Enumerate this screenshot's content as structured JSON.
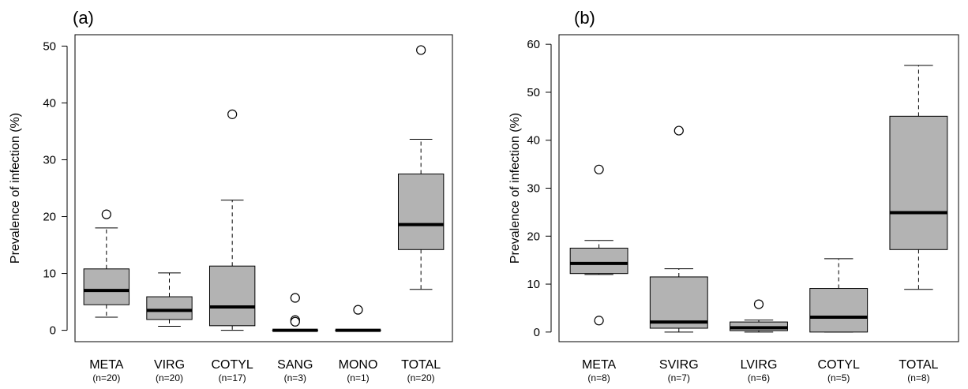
{
  "chart_data": [
    {
      "type": "box",
      "panel_label": "(a)",
      "ylabel": "Prevalence of infection (%)",
      "ylim": [
        -2,
        52
      ],
      "yticks": [
        0,
        10,
        20,
        30,
        40,
        50
      ],
      "categories": [
        "META",
        "VIRG",
        "COTYL",
        "SANG",
        "MONO",
        "TOTAL"
      ],
      "n_labels": [
        "(n=20)",
        "(n=20)",
        "(n=17)",
        "(n=3)",
        "(n=1)",
        "(n=20)"
      ],
      "boxes": [
        {
          "whislo": 2.3,
          "q1": 4.5,
          "med": 7.0,
          "q3": 10.8,
          "whishi": 18.0,
          "fliers": [
            20.4
          ]
        },
        {
          "whislo": 0.7,
          "q1": 1.9,
          "med": 3.5,
          "q3": 5.9,
          "whishi": 10.1,
          "fliers": []
        },
        {
          "whislo": 0.0,
          "q1": 0.8,
          "med": 4.1,
          "q3": 11.3,
          "whishi": 22.9,
          "fliers": [
            38.0
          ]
        },
        {
          "whislo": 0.0,
          "q1": 0.0,
          "med": 0.0,
          "q3": 0.0,
          "whishi": 0.0,
          "fliers": [
            5.7,
            1.8,
            1.5
          ]
        },
        {
          "whislo": 0.0,
          "q1": 0.0,
          "med": 0.0,
          "q3": 0.0,
          "whishi": 0.0,
          "fliers": [
            3.6
          ]
        },
        {
          "whislo": 7.2,
          "q1": 14.2,
          "med": 18.6,
          "q3": 27.5,
          "whishi": 33.6,
          "fliers": [
            49.3
          ]
        }
      ],
      "box_color": "#b3b3b3"
    },
    {
      "type": "box",
      "panel_label": "(b)",
      "ylabel": "Prevalence of infection (%)",
      "ylim": [
        -2,
        62
      ],
      "yticks": [
        0,
        10,
        20,
        30,
        40,
        50,
        60
      ],
      "categories": [
        "META",
        "SVIRG",
        "LVIRG",
        "COTYL",
        "TOTAL"
      ],
      "n_labels": [
        "(n=8)",
        "(n=7)",
        "(n=6)",
        "(n=5)",
        "(n=8)"
      ],
      "boxes": [
        {
          "whislo": 12.0,
          "q1": 12.2,
          "med": 14.3,
          "q3": 17.5,
          "whishi": 19.1,
          "fliers": [
            33.9,
            2.4
          ]
        },
        {
          "whislo": 0.0,
          "q1": 0.8,
          "med": 2.1,
          "q3": 11.5,
          "whishi": 13.2,
          "fliers": [
            42.0
          ]
        },
        {
          "whislo": 0.0,
          "q1": 0.3,
          "med": 0.9,
          "q3": 2.1,
          "whishi": 2.5,
          "fliers": [
            5.8
          ]
        },
        {
          "whislo": 0.0,
          "q1": 0.0,
          "med": 3.1,
          "q3": 9.1,
          "whishi": 15.3,
          "fliers": []
        },
        {
          "whislo": 8.9,
          "q1": 17.2,
          "med": 24.9,
          "q3": 45.0,
          "whishi": 55.6,
          "fliers": []
        }
      ],
      "box_color": "#b3b3b3"
    }
  ]
}
